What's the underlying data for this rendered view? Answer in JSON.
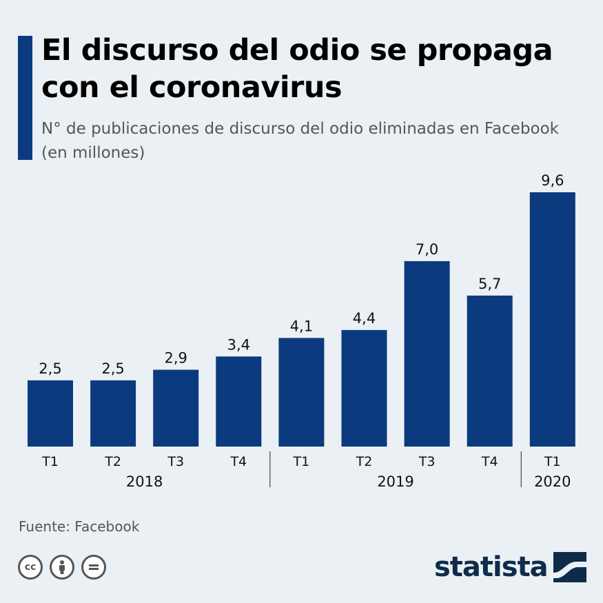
{
  "header": {
    "title": "El discurso del odio se propaga con el coronavirus",
    "subtitle": "N° de publicaciones de discurso del odio eliminadas en Facebook (en millones)"
  },
  "chart_data": {
    "type": "bar",
    "categories": [
      "T1",
      "T2",
      "T3",
      "T4",
      "T1",
      "T2",
      "T3",
      "T4",
      "T1"
    ],
    "groups": [
      {
        "label": "2018",
        "count": 4
      },
      {
        "label": "2019",
        "count": 4
      },
      {
        "label": "2020",
        "count": 1
      }
    ],
    "values": [
      2.5,
      2.5,
      2.9,
      3.4,
      4.1,
      4.4,
      7.0,
      5.7,
      9.6
    ],
    "value_labels": [
      "2,5",
      "2,5",
      "2,9",
      "3,4",
      "4,1",
      "4,4",
      "7,0",
      "5,7",
      "9,6"
    ],
    "bar_color": "#0b3a7e",
    "ylim": [
      0,
      9.6
    ],
    "grid": false,
    "legend": "none"
  },
  "footer": {
    "source": "Fuente: Facebook",
    "brand": "statista",
    "license_icons": [
      "cc-icon",
      "by-icon",
      "nd-icon"
    ]
  }
}
